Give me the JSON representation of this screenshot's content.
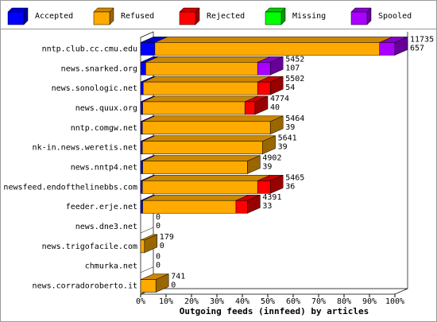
{
  "chart_data": {
    "type": "bar",
    "orientation": "horizontal",
    "stacked": true,
    "title": "Outgoing feeds (innfeed) by articles",
    "categories": [
      "nntp.club.cc.cmu.edu",
      "news.snarked.org",
      "news.sonologic.net",
      "news.quux.org",
      "nntp.comgw.net",
      "nk-in.news.weretis.net",
      "news.nntp4.net",
      "newsfeed.endofthelinebbs.com",
      "feeder.erje.net",
      "news.dne3.net",
      "news.trigofacile.com",
      "chmurka.net",
      "news.corradoroberto.it"
    ],
    "series": [
      {
        "name": "Accepted",
        "color": "#0000ff",
        "values": [
          5.6,
          2,
          1,
          0.8,
          0.7,
          0.7,
          0.8,
          0.7,
          0.8,
          0,
          0,
          0,
          0
        ]
      },
      {
        "name": "Refused",
        "color": "#ffaa00",
        "values": [
          88.4,
          44,
          45,
          40.2,
          50.3,
          47.3,
          41.2,
          45.3,
          36.7,
          0,
          1.5,
          0,
          6
        ]
      },
      {
        "name": "Rejected",
        "color": "#ff0000",
        "values": [
          0,
          0,
          5,
          4,
          0,
          0,
          0,
          5,
          4.5,
          0,
          0,
          0,
          0
        ]
      },
      {
        "name": "Missing",
        "color": "#00ff00",
        "values": [
          0,
          0,
          0,
          0,
          0,
          0,
          0,
          0,
          0,
          0,
          0,
          0,
          0
        ]
      },
      {
        "name": "Spooled",
        "color": "#aa00ff",
        "values": [
          6,
          5,
          0,
          0,
          0,
          0,
          0,
          0,
          0,
          0,
          0,
          0,
          0
        ]
      }
    ],
    "offered": [
      11735,
      5452,
      5502,
      4774,
      5464,
      5641,
      4902,
      5465,
      4391,
      0,
      179,
      0,
      741
    ],
    "accepted": [
      657,
      107,
      54,
      40,
      39,
      39,
      39,
      36,
      33,
      0,
      0,
      0,
      0
    ],
    "xlim": [
      0,
      100
    ],
    "xticks": [
      {
        "value": 0,
        "label": "0%"
      },
      {
        "value": 10,
        "label": "10%"
      },
      {
        "value": 20,
        "label": "20%"
      },
      {
        "value": 30,
        "label": "30%"
      },
      {
        "value": 40,
        "label": "40%"
      },
      {
        "value": 50,
        "label": "50%"
      },
      {
        "value": 60,
        "label": "60%"
      },
      {
        "value": 70,
        "label": "70%"
      },
      {
        "value": 80,
        "label": "80%"
      },
      {
        "value": 90,
        "label": "90%"
      },
      {
        "value": 100,
        "label": "100%"
      }
    ]
  }
}
